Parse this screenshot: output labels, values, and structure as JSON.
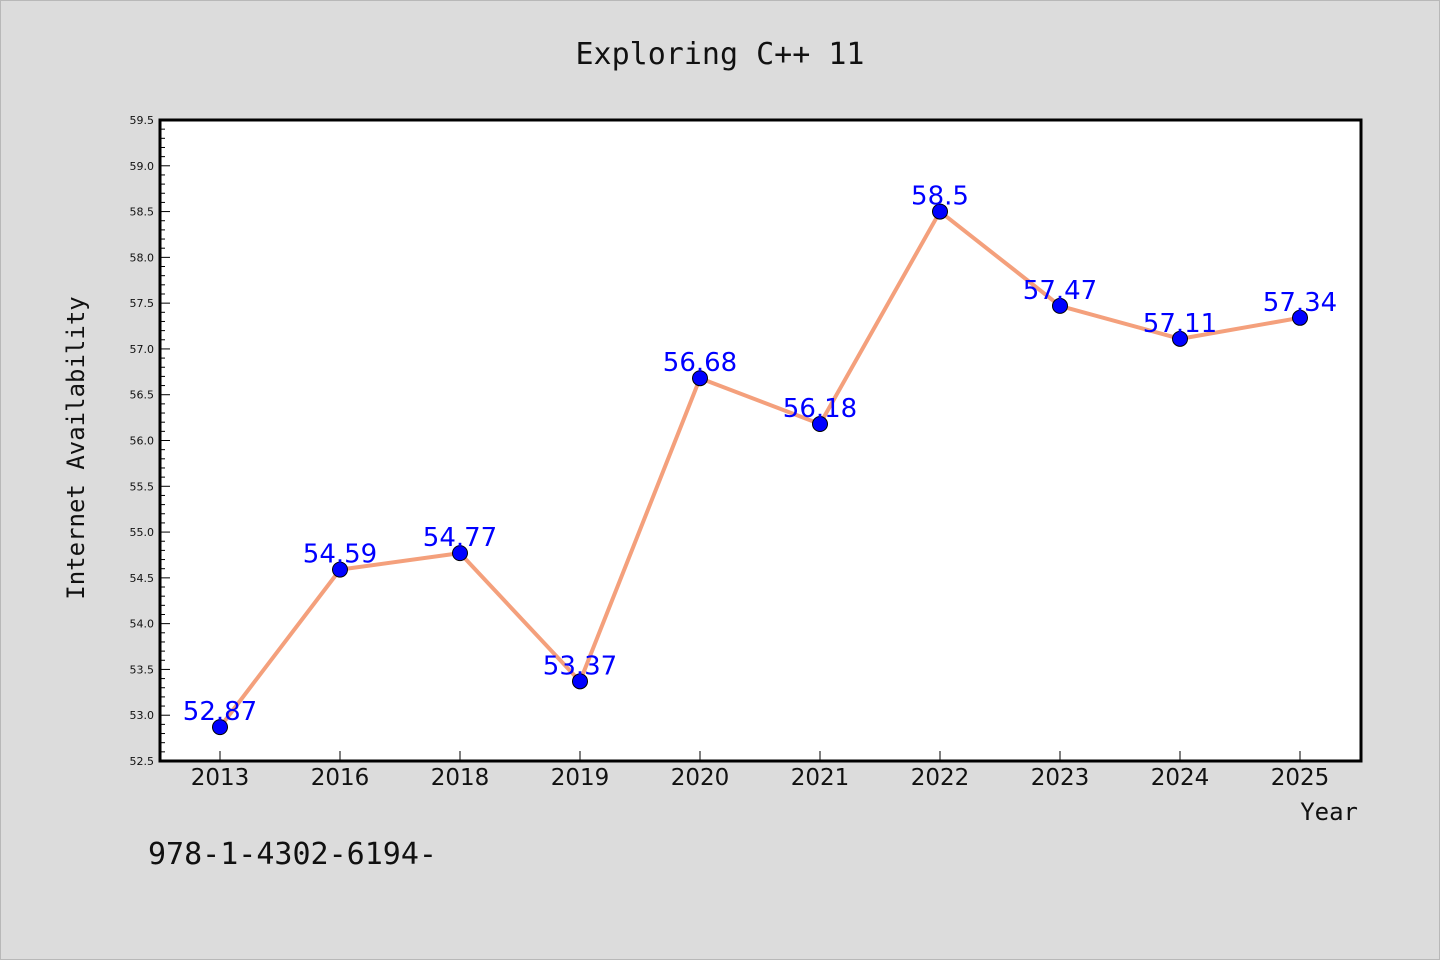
{
  "chart_data": {
    "type": "line",
    "title": "Exploring C++ 11",
    "xlabel": "Year",
    "ylabel": "Internet Availability",
    "categories": [
      "2013",
      "2016",
      "2018",
      "2019",
      "2020",
      "2021",
      "2022",
      "2023",
      "2024",
      "2025"
    ],
    "series": [
      {
        "values": [
          52.87,
          54.59,
          54.77,
          53.37,
          56.68,
          56.18,
          58.5,
          57.47,
          57.11,
          57.34
        ],
        "data_labels": [
          "52.87",
          "54.59",
          "54.77",
          "53.37",
          "56.68",
          "56.18",
          "58.5",
          "57.47",
          "57.11",
          "57.34"
        ],
        "line_color": "#f4a07c",
        "marker_color": "#0000ff"
      }
    ],
    "ylim": [
      52.5,
      59.5
    ],
    "yticks": [
      "52.5",
      "53.0",
      "53.5",
      "54.0",
      "54.5",
      "55.0",
      "55.5",
      "56.0",
      "56.5",
      "57.0",
      "57.5",
      "58.0",
      "58.5",
      "59.0",
      "59.5"
    ],
    "grid": false,
    "legend": "none"
  },
  "footer": {
    "text": "978-1-4302-6194-"
  },
  "colors": {
    "background": "#dcdcdc",
    "plot_background": "#ffffff",
    "label_color": "#0000ff"
  }
}
